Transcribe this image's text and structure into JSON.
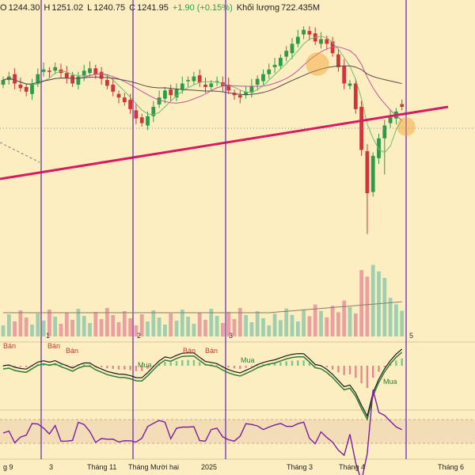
{
  "header": {
    "o_label": "O",
    "o_value": "1244.30",
    "h_label": "H",
    "h_value": "1251.02",
    "l_label": "L",
    "l_value": "1240.75",
    "c_label": "C",
    "c_value": "1241.95",
    "change": "+1.90 (+0.15%)",
    "volume_label": "Khối lượng",
    "volume_value": "722.435M"
  },
  "x_axis_labels": [
    "g 9",
    "3",
    "Tháng 11",
    "Tháng Mười hai",
    "2025",
    "Tháng 3",
    "Tháng 4",
    "Tháng 6"
  ],
  "marker_numbers": [
    "1",
    "2",
    "3",
    "5"
  ],
  "signal_labels": {
    "sell": "Bán",
    "buy": "Mua"
  },
  "colors": {
    "background": "#fdeec2",
    "candle_up": "#2e9b4a",
    "candle_down": "#d1343a",
    "trendline": "#d81b60",
    "vertical_lines": "#6a2ec0",
    "highlight_circle": "#f0a030",
    "rsi_line": "#7b1fa2",
    "macd_line": "#1a1a1a",
    "signal_line": "#2e7d32"
  },
  "chart_data": {
    "type": "candlestick",
    "close_series_approx": [
      1265,
      1268,
      1262,
      1258,
      1255,
      1262,
      1270,
      1274,
      1272,
      1276,
      1271,
      1267,
      1262,
      1268,
      1273,
      1275,
      1270,
      1266,
      1260,
      1255,
      1250,
      1246,
      1240,
      1232,
      1228,
      1234,
      1242,
      1250,
      1256,
      1252,
      1257,
      1262,
      1265,
      1268,
      1263,
      1259,
      1262,
      1264,
      1260,
      1256,
      1252,
      1250,
      1255,
      1260,
      1266,
      1270,
      1274,
      1278,
      1284,
      1290,
      1296,
      1302,
      1308,
      1304,
      1298,
      1300,
      1296,
      1288,
      1276,
      1262,
      1262,
      1240,
      1205,
      1168,
      1200,
      1215,
      1226,
      1233,
      1238,
      1241.95
    ],
    "last_candle": {
      "open": 1244.3,
      "high": 1251.02,
      "low": 1240.75,
      "close": 1241.95,
      "change": 1.9,
      "change_pct": 0.15
    },
    "volume_last": "722.435M",
    "indicators": [
      "moving averages",
      "volume",
      "MACD",
      "RSI"
    ]
  }
}
